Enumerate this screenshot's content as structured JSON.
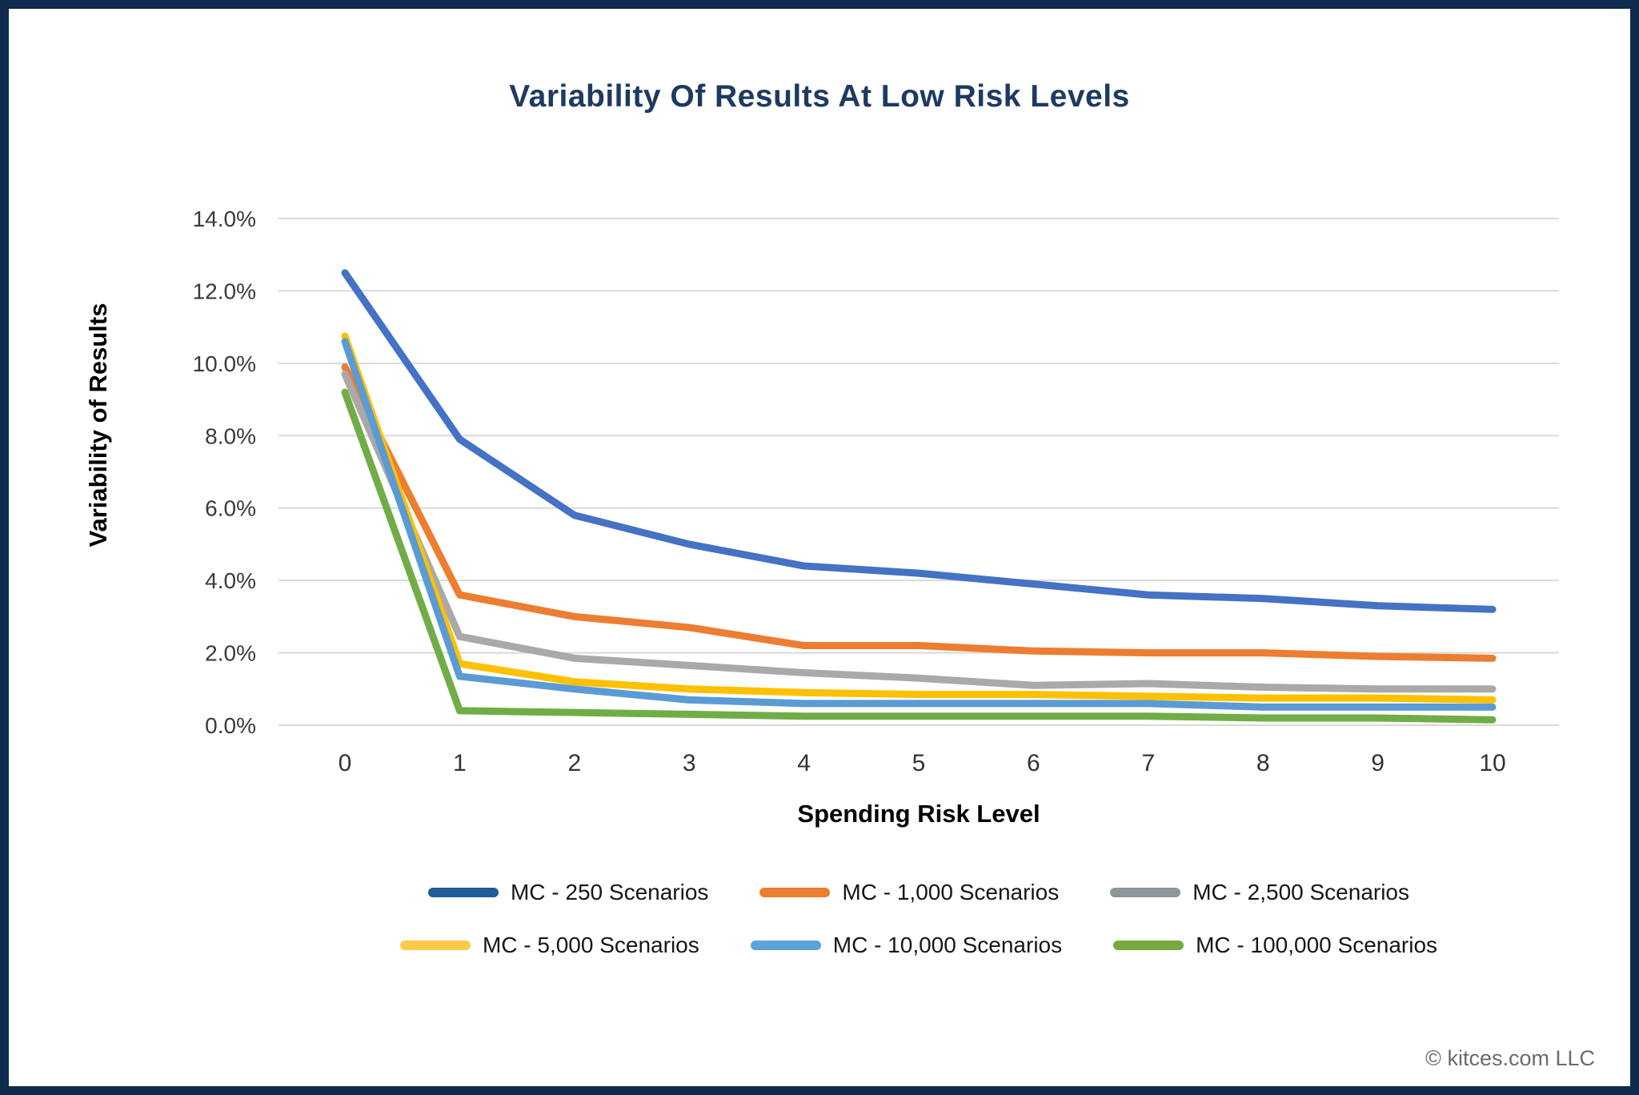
{
  "frame": {
    "border_color": "#0F2B4D",
    "background": "#FFFFFF"
  },
  "title": {
    "text": "Variability Of Results At Low Risk Levels",
    "color": "#1E3A62"
  },
  "footer": {
    "copyright": "© kitces.com LLC"
  },
  "chart_data": {
    "type": "line",
    "title": "Variability Of Results At Low Risk Levels",
    "xlabel": "Spending Risk Level",
    "ylabel": "Variability of Results",
    "x_categories": [
      "0",
      "1",
      "2",
      "3",
      "4",
      "5",
      "6",
      "7",
      "8",
      "9",
      "10"
    ],
    "y_unit": "percent",
    "ylim": [
      0,
      14
    ],
    "y_tick_step": 2,
    "y_tick_labels": [
      "0.0%",
      "2.0%",
      "4.0%",
      "6.0%",
      "8.0%",
      "10.0%",
      "12.0%",
      "14.0%"
    ],
    "grid": "horizontal",
    "gridline_color": "#D9D9D9",
    "legend_position": "bottom",
    "legend_rows": 2,
    "series": [
      {
        "name": "MC - 250 Scenarios",
        "color": "#4472C4",
        "legend_color": "#1F5C99",
        "values": [
          12.5,
          7.9,
          5.8,
          5.0,
          4.4,
          4.2,
          3.9,
          3.6,
          3.5,
          3.3,
          3.2
        ]
      },
      {
        "name": "MC - 1,000 Scenarios",
        "color": "#ED7D31",
        "legend_color": "#ED7D31",
        "values": [
          9.9,
          3.6,
          3.0,
          2.7,
          2.2,
          2.2,
          2.05,
          2.0,
          2.0,
          1.9,
          1.85
        ]
      },
      {
        "name": "MC - 2,500 Scenarios",
        "color": "#A9A9A9",
        "legend_color": "#8F969A",
        "values": [
          9.7,
          2.45,
          1.85,
          1.65,
          1.45,
          1.3,
          1.1,
          1.15,
          1.05,
          1.0,
          1.0
        ]
      },
      {
        "name": "MC - 5,000 Scenarios",
        "color": "#FFC000",
        "legend_color": "#FFC94A",
        "values": [
          10.75,
          1.7,
          1.2,
          1.0,
          0.9,
          0.85,
          0.85,
          0.8,
          0.75,
          0.75,
          0.7
        ]
      },
      {
        "name": "MC - 10,000 Scenarios",
        "color": "#5B9BD5",
        "legend_color": "#5BA3D9",
        "values": [
          10.6,
          1.35,
          1.0,
          0.7,
          0.6,
          0.6,
          0.6,
          0.6,
          0.5,
          0.5,
          0.5
        ]
      },
      {
        "name": "MC - 100,000 Scenarios",
        "color": "#70AD47",
        "legend_color": "#76A93F",
        "values": [
          9.2,
          0.4,
          0.35,
          0.3,
          0.25,
          0.25,
          0.25,
          0.25,
          0.2,
          0.2,
          0.15
        ]
      }
    ]
  }
}
